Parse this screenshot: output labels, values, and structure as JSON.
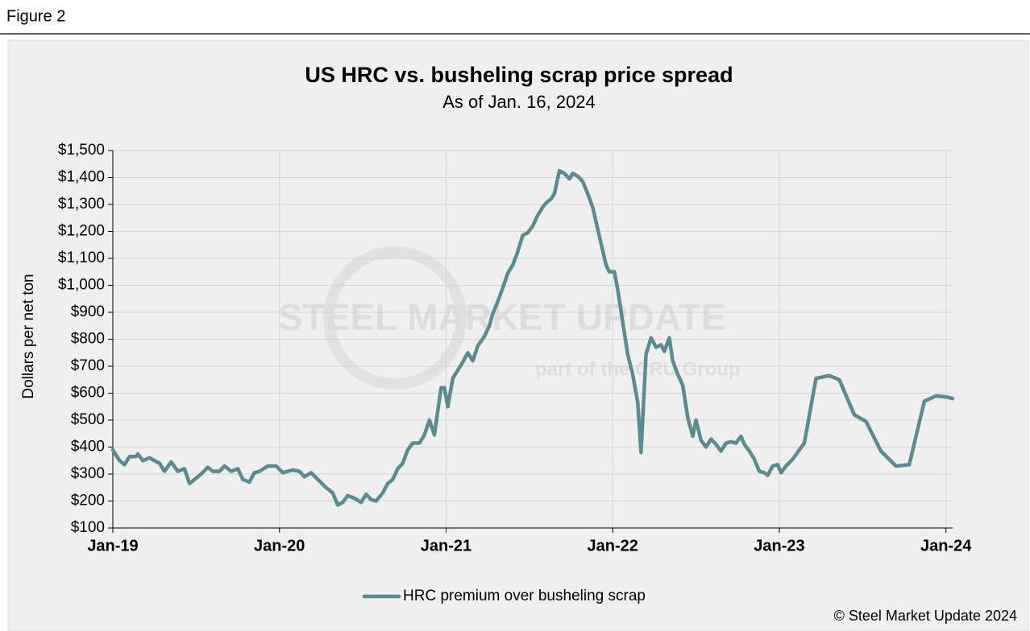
{
  "figure_label": "Figure 2",
  "copyright": "© Steel Market Update 2024",
  "watermark": {
    "main": "STEEL MARKET UPDATE",
    "sub": "part of the CRU Group"
  },
  "chart_data": {
    "type": "line",
    "title": "US HRC vs. busheling scrap price spread",
    "subtitle": "As of Jan. 16, 2024",
    "y_label": "Dollars per net ton",
    "grid": true,
    "legend": "bottom",
    "xlim": [
      2019,
      2024.04
    ],
    "xticks": [
      {
        "value": 2019,
        "label": "Jan-19"
      },
      {
        "value": 2020,
        "label": "Jan-20"
      },
      {
        "value": 2021,
        "label": "Jan-21"
      },
      {
        "value": 2022,
        "label": "Jan-22"
      },
      {
        "value": 2023,
        "label": "Jan-23"
      },
      {
        "value": 2024,
        "label": "Jan-24"
      }
    ],
    "ylim": [
      100,
      1500
    ],
    "yticks": [
      {
        "value": 100,
        "label": "$100"
      },
      {
        "value": 200,
        "label": "$200"
      },
      {
        "value": 300,
        "label": "$300"
      },
      {
        "value": 400,
        "label": "$400"
      },
      {
        "value": 500,
        "label": "$500"
      },
      {
        "value": 600,
        "label": "$600"
      },
      {
        "value": 700,
        "label": "$700"
      },
      {
        "value": 800,
        "label": "$800"
      },
      {
        "value": 900,
        "label": "$900"
      },
      {
        "value": 1000,
        "label": "$1,000"
      },
      {
        "value": 1100,
        "label": "$1,100"
      },
      {
        "value": 1200,
        "label": "$1,200"
      },
      {
        "value": 1300,
        "label": "$1,300"
      },
      {
        "value": 1400,
        "label": "$1,400"
      },
      {
        "value": 1500,
        "label": "$1,500"
      }
    ],
    "x": [
      2019.0,
      2019.04,
      2019.07,
      2019.1,
      2019.14,
      2019.15,
      2019.18,
      2019.22,
      2019.25,
      2019.28,
      2019.31,
      2019.35,
      2019.39,
      2019.43,
      2019.46,
      2019.49,
      2019.53,
      2019.57,
      2019.6,
      2019.64,
      2019.67,
      2019.71,
      2019.75,
      2019.78,
      2019.82,
      2019.85,
      2019.88,
      2019.93,
      2019.98,
      2020.02,
      2020.05,
      2020.08,
      2020.12,
      2020.15,
      2020.19,
      2020.23,
      2020.28,
      2020.32,
      2020.35,
      2020.38,
      2020.41,
      2020.45,
      2020.49,
      2020.52,
      2020.55,
      2020.58,
      2020.62,
      2020.65,
      2020.68,
      2020.71,
      2020.74,
      2020.77,
      2020.8,
      2020.84,
      2020.87,
      2020.9,
      2020.93,
      2020.95,
      2020.97,
      2020.99,
      2021.01,
      2021.04,
      2021.07,
      2021.1,
      2021.13,
      2021.16,
      2021.19,
      2021.23,
      2021.26,
      2021.28,
      2021.31,
      2021.34,
      2021.37,
      2021.4,
      2021.43,
      2021.46,
      2021.49,
      2021.52,
      2021.55,
      2021.58,
      2021.6,
      2021.63,
      2021.65,
      2021.68,
      2021.71,
      2021.74,
      2021.76,
      2021.79,
      2021.82,
      2021.85,
      2021.88,
      2021.9,
      2021.93,
      2021.96,
      2021.98,
      2022.01,
      2022.03,
      2022.06,
      2022.09,
      2022.12,
      2022.15,
      2022.17,
      2022.18,
      2022.2,
      2022.23,
      2022.26,
      2022.29,
      2022.31,
      2022.34,
      2022.36,
      2022.39,
      2022.42,
      2022.45,
      2022.48,
      2022.5,
      2022.53,
      2022.56,
      2022.59,
      2022.62,
      2022.65,
      2022.68,
      2022.71,
      2022.74,
      2022.77,
      2022.79,
      2022.82,
      2022.85,
      2022.88,
      2022.91,
      2022.93,
      2022.96,
      2022.99,
      2023.01,
      2023.04,
      2023.08,
      2023.12,
      2023.15,
      2023.22,
      2023.3,
      2023.36,
      2023.45,
      2023.52,
      2023.61,
      2023.7,
      2023.78,
      2023.87,
      2023.94,
      2024.01,
      2024.04
    ],
    "series": [
      {
        "name": "HRC premium over busheling scrap",
        "color": "#5b8a8f",
        "values": [
          390,
          350,
          335,
          365,
          365,
          375,
          350,
          360,
          350,
          340,
          310,
          345,
          310,
          320,
          265,
          280,
          300,
          325,
          310,
          310,
          330,
          310,
          320,
          280,
          270,
          305,
          310,
          330,
          330,
          305,
          310,
          315,
          310,
          290,
          305,
          280,
          250,
          230,
          185,
          195,
          220,
          210,
          195,
          225,
          205,
          200,
          230,
          265,
          280,
          320,
          340,
          390,
          415,
          415,
          445,
          500,
          445,
          535,
          620,
          620,
          550,
          655,
          685,
          715,
          750,
          720,
          775,
          810,
          850,
          895,
          940,
          990,
          1045,
          1075,
          1125,
          1185,
          1195,
          1220,
          1260,
          1290,
          1305,
          1320,
          1340,
          1425,
          1415,
          1395,
          1415,
          1405,
          1385,
          1340,
          1290,
          1235,
          1155,
          1075,
          1050,
          1050,
          985,
          865,
          745,
          670,
          565,
          380,
          505,
          745,
          805,
          770,
          780,
          755,
          805,
          720,
          670,
          630,
          510,
          440,
          500,
          425,
          400,
          430,
          410,
          385,
          415,
          420,
          415,
          440,
          410,
          385,
          355,
          310,
          305,
          295,
          330,
          335,
          305,
          330,
          355,
          390,
          415,
          655,
          665,
          650,
          520,
          495,
          385,
          330,
          335,
          570,
          590,
          585,
          580
        ]
      }
    ]
  }
}
